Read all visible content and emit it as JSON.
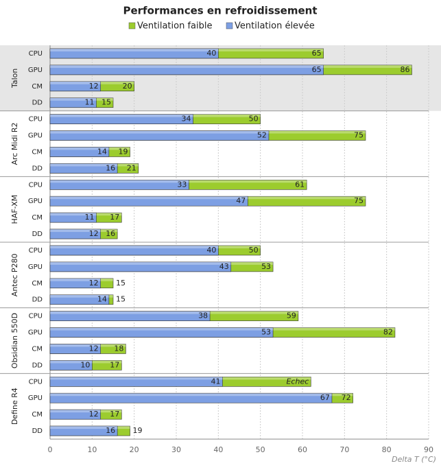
{
  "chart_data": {
    "type": "overlap-bar",
    "title": "Performances en refroidissement",
    "x_label": "Delta T (°C)",
    "groups": [
      {
        "name": "Talon",
        "categories": [
          "CPU",
          "GPU",
          "CM",
          "DD"
        ]
      },
      {
        "name": "Arc Midi R2",
        "categories": [
          "CPU",
          "GPU",
          "CM",
          "DD"
        ]
      },
      {
        "name": "HAF-XM",
        "categories": [
          "CPU",
          "GPU",
          "CM",
          "DD"
        ]
      },
      {
        "name": "Antec P280",
        "categories": [
          "CPU",
          "GPU",
          "CM",
          "DD"
        ]
      },
      {
        "name": "Obsidian 550D",
        "categories": [
          "CPU",
          "GPU",
          "CM",
          "DD"
        ]
      },
      {
        "name": "Define R4",
        "categories": [
          "CPU",
          "GPU",
          "CM",
          "DD"
        ]
      }
    ],
    "series": [
      {
        "name": "Ventilation faible",
        "color": "#9ccc2e",
        "values": [
          65,
          86,
          20,
          15,
          50,
          75,
          19,
          21,
          61,
          75,
          17,
          16,
          50,
          53,
          15,
          15,
          59,
          82,
          18,
          17,
          62,
          72,
          17,
          19
        ],
        "value_labels": [
          null,
          null,
          null,
          null,
          null,
          null,
          null,
          null,
          null,
          null,
          null,
          null,
          null,
          null,
          null,
          null,
          null,
          null,
          null,
          null,
          "Echec",
          null,
          null,
          null
        ]
      },
      {
        "name": "Ventilation élevée",
        "color": "#7d9fe3",
        "values": [
          40,
          65,
          12,
          11,
          34,
          52,
          14,
          16,
          33,
          47,
          11,
          12,
          40,
          43,
          12,
          14,
          38,
          53,
          12,
          10,
          41,
          67,
          12,
          16
        ]
      }
    ],
    "xlim": [
      0,
      90
    ],
    "xticks": [
      0,
      10,
      20,
      30,
      40,
      50,
      60,
      70,
      80,
      90
    ],
    "grid": true,
    "shaded_group": 0
  }
}
